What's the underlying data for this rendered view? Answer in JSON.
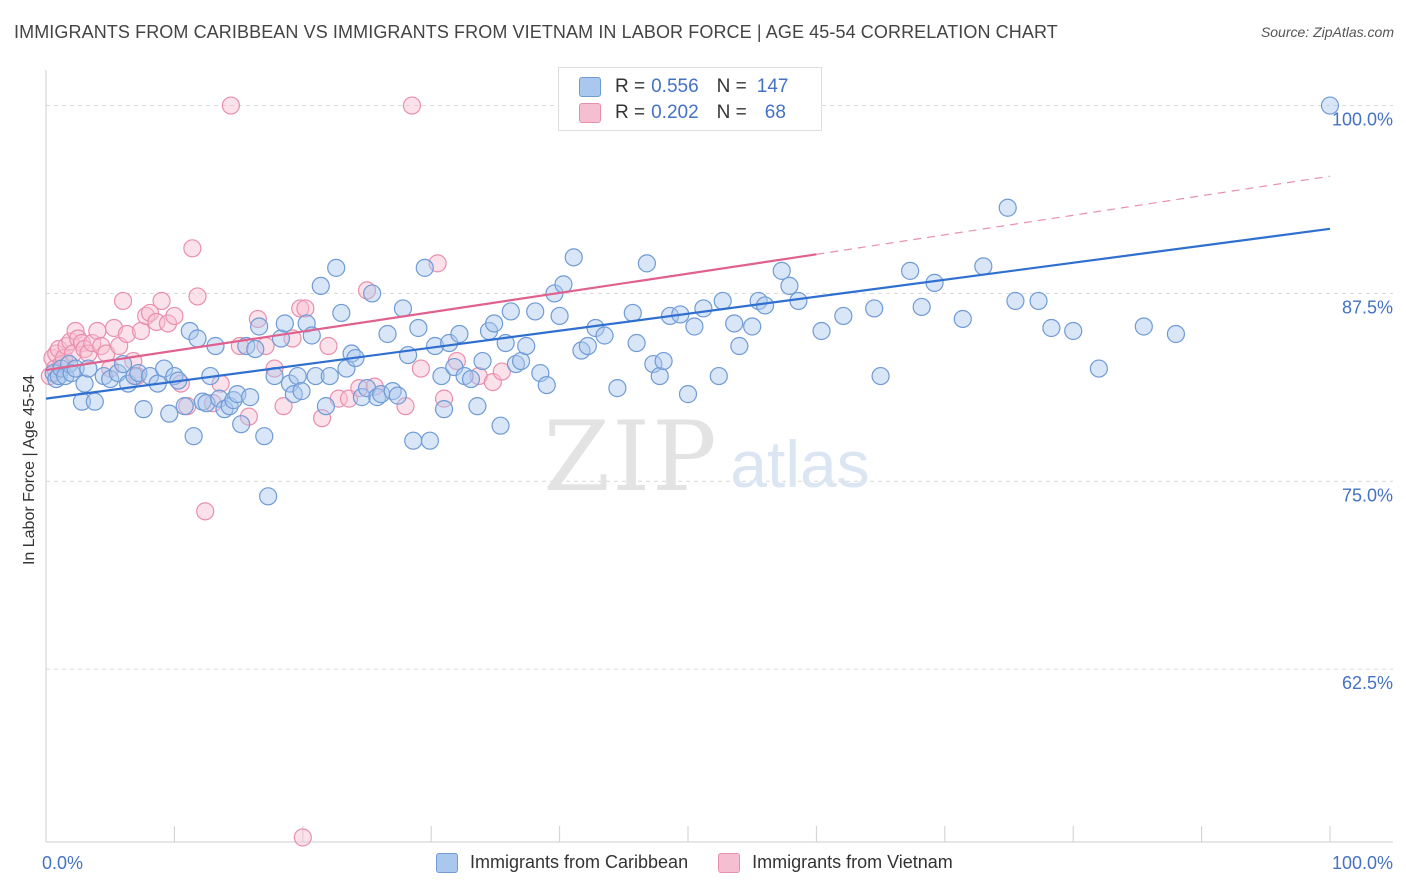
{
  "header": {
    "title": "IMMIGRANTS FROM CARIBBEAN VS IMMIGRANTS FROM VIETNAM IN LABOR FORCE | AGE 45-54 CORRELATION CHART",
    "source": "Source: ZipAtlas.com"
  },
  "watermark": {
    "zip": "ZIP",
    "atlas": "atlas"
  },
  "legend": {
    "r_label": "R =",
    "n_label": "N =",
    "rows": [
      {
        "r": "0.556",
        "n": "147"
      },
      {
        "r": "0.202",
        "n": "68"
      }
    ]
  },
  "colors": {
    "caribbean_fill": "#aac7ee",
    "caribbean_stroke": "#6f9bd6",
    "caribbean_line": "#2f6fd0",
    "vietnam_fill": "#f6bfd1",
    "vietnam_stroke": "#e98fae",
    "vietnam_line": "#e0608e",
    "axis_label": "#4472c4"
  },
  "chart_data": {
    "type": "scatter",
    "title": "IMMIGRANTS FROM CARIBBEAN VS IMMIGRANTS FROM VIETNAM IN LABOR FORCE | AGE 45-54 CORRELATION CHART",
    "xlabel": "",
    "ylabel": "In Labor Force | Age 45-54",
    "xlim": [
      0,
      100
    ],
    "ylim": [
      51.0,
      101.5
    ],
    "x_tick_labels": [
      "0.0%",
      "100.0%"
    ],
    "y_ticks": [
      62.5,
      75.0,
      87.5,
      100.0
    ],
    "y_tick_labels": [
      "62.5%",
      "75.0%",
      "87.5%",
      "100.0%"
    ],
    "grid": "horizontal dashed",
    "legend_position": "top-center",
    "series": [
      {
        "name": "Immigrants from Caribbean",
        "r": 0.556,
        "n": 147,
        "trend": {
          "x": [
            0,
            100
          ],
          "y": [
            80.5,
            91.8
          ]
        },
        "points": [
          [
            0.6,
            82.2
          ],
          [
            0.8,
            81.8
          ],
          [
            1.0,
            82.0
          ],
          [
            1.2,
            82.5
          ],
          [
            1.5,
            82.0
          ],
          [
            1.8,
            82.8
          ],
          [
            2.0,
            82.2
          ],
          [
            2.3,
            82.5
          ],
          [
            2.8,
            80.3
          ],
          [
            3.0,
            81.5
          ],
          [
            3.3,
            82.5
          ],
          [
            3.8,
            80.3
          ],
          [
            4.5,
            82.0
          ],
          [
            5.0,
            81.8
          ],
          [
            5.6,
            82.2
          ],
          [
            6.0,
            82.8
          ],
          [
            6.4,
            81.5
          ],
          [
            6.9,
            82.0
          ],
          [
            7.2,
            82.2
          ],
          [
            7.6,
            79.8
          ],
          [
            8.1,
            82.0
          ],
          [
            8.7,
            81.5
          ],
          [
            9.2,
            82.5
          ],
          [
            9.6,
            79.5
          ],
          [
            10.0,
            82.0
          ],
          [
            10.3,
            81.7
          ],
          [
            10.8,
            80.0
          ],
          [
            11.2,
            85.0
          ],
          [
            11.5,
            78.0
          ],
          [
            11.8,
            84.5
          ],
          [
            12.2,
            80.3
          ],
          [
            12.5,
            80.2
          ],
          [
            12.8,
            82.0
          ],
          [
            13.2,
            84.0
          ],
          [
            13.5,
            80.5
          ],
          [
            13.9,
            79.8
          ],
          [
            14.3,
            80.0
          ],
          [
            14.6,
            80.4
          ],
          [
            14.9,
            80.8
          ],
          [
            15.2,
            78.8
          ],
          [
            15.6,
            84.0
          ],
          [
            15.9,
            80.6
          ],
          [
            16.3,
            83.8
          ],
          [
            16.6,
            85.3
          ],
          [
            17.0,
            78.0
          ],
          [
            17.3,
            74.0
          ],
          [
            17.8,
            82.0
          ],
          [
            18.3,
            84.5
          ],
          [
            18.6,
            85.5
          ],
          [
            19.0,
            81.5
          ],
          [
            19.3,
            80.8
          ],
          [
            19.6,
            82.0
          ],
          [
            19.9,
            81.0
          ],
          [
            20.3,
            85.5
          ],
          [
            20.7,
            84.7
          ],
          [
            21.0,
            82.0
          ],
          [
            21.4,
            88.0
          ],
          [
            21.8,
            80.0
          ],
          [
            22.1,
            82.0
          ],
          [
            22.6,
            89.2
          ],
          [
            23.0,
            86.2
          ],
          [
            23.4,
            82.5
          ],
          [
            23.8,
            83.5
          ],
          [
            24.1,
            83.2
          ],
          [
            24.6,
            80.6
          ],
          [
            25.0,
            81.2
          ],
          [
            25.4,
            87.5
          ],
          [
            25.8,
            80.6
          ],
          [
            26.1,
            80.8
          ],
          [
            26.6,
            84.8
          ],
          [
            27.0,
            81.0
          ],
          [
            27.4,
            80.7
          ],
          [
            27.8,
            86.5
          ],
          [
            28.2,
            83.4
          ],
          [
            28.6,
            77.7
          ],
          [
            29.0,
            85.2
          ],
          [
            29.5,
            89.2
          ],
          [
            29.9,
            77.7
          ],
          [
            30.3,
            84.0
          ],
          [
            30.8,
            82.0
          ],
          [
            31.0,
            79.8
          ],
          [
            31.4,
            84.2
          ],
          [
            31.8,
            82.6
          ],
          [
            32.2,
            84.8
          ],
          [
            32.6,
            82.0
          ],
          [
            33.1,
            81.8
          ],
          [
            33.6,
            80.0
          ],
          [
            34.0,
            83.0
          ],
          [
            34.5,
            85.0
          ],
          [
            34.9,
            85.5
          ],
          [
            35.4,
            78.7
          ],
          [
            35.8,
            84.2
          ],
          [
            36.2,
            86.3
          ],
          [
            36.6,
            82.8
          ],
          [
            37.0,
            83.0
          ],
          [
            37.4,
            84.0
          ],
          [
            38.1,
            86.3
          ],
          [
            38.5,
            82.2
          ],
          [
            39.0,
            81.4
          ],
          [
            39.6,
            87.5
          ],
          [
            40.0,
            86.0
          ],
          [
            40.3,
            88.1
          ],
          [
            41.1,
            89.9
          ],
          [
            41.7,
            83.7
          ],
          [
            42.2,
            84.0
          ],
          [
            42.8,
            85.2
          ],
          [
            43.5,
            84.7
          ],
          [
            44.5,
            81.2
          ],
          [
            45.7,
            86.2
          ],
          [
            46.0,
            84.2
          ],
          [
            46.8,
            89.5
          ],
          [
            47.3,
            82.8
          ],
          [
            47.8,
            82.0
          ],
          [
            48.1,
            83.0
          ],
          [
            48.6,
            86.0
          ],
          [
            49.4,
            86.1
          ],
          [
            50.0,
            80.8
          ],
          [
            50.5,
            85.3
          ],
          [
            51.2,
            86.5
          ],
          [
            52.4,
            82.0
          ],
          [
            52.7,
            87.0
          ],
          [
            53.6,
            85.5
          ],
          [
            54.0,
            84.0
          ],
          [
            55.0,
            85.3
          ],
          [
            55.5,
            87.0
          ],
          [
            56.0,
            86.7
          ],
          [
            57.3,
            89.0
          ],
          [
            57.9,
            88.0
          ],
          [
            58.6,
            87.0
          ],
          [
            60.4,
            85.0
          ],
          [
            62.1,
            86.0
          ],
          [
            64.5,
            86.5
          ],
          [
            65.0,
            82.0
          ],
          [
            67.3,
            89.0
          ],
          [
            68.2,
            86.6
          ],
          [
            69.2,
            88.2
          ],
          [
            71.4,
            85.8
          ],
          [
            73.0,
            89.3
          ],
          [
            74.9,
            93.2
          ],
          [
            75.5,
            87.0
          ],
          [
            77.3,
            87.0
          ],
          [
            78.3,
            85.2
          ],
          [
            80.0,
            85.0
          ],
          [
            82.0,
            82.5
          ],
          [
            85.5,
            85.3
          ],
          [
            88.0,
            84.8
          ],
          [
            100.0,
            100.0
          ]
        ]
      },
      {
        "name": "Immigrants from Vietnam",
        "r": 0.202,
        "n": 68,
        "trend": {
          "x": [
            0,
            60
          ],
          "y": [
            82.4,
            90.1
          ]
        },
        "trend_dashed": {
          "x": [
            60,
            100
          ],
          "y": [
            90.1,
            95.3
          ]
        },
        "points": [
          [
            0.3,
            82.0
          ],
          [
            0.5,
            83.2
          ],
          [
            0.7,
            82.5
          ],
          [
            0.8,
            83.5
          ],
          [
            1.0,
            83.8
          ],
          [
            1.2,
            82.8
          ],
          [
            1.4,
            83.2
          ],
          [
            1.6,
            84.0
          ],
          [
            1.9,
            84.3
          ],
          [
            2.1,
            83.5
          ],
          [
            2.3,
            85.0
          ],
          [
            2.5,
            84.5
          ],
          [
            2.8,
            84.2
          ],
          [
            3.0,
            83.8
          ],
          [
            3.3,
            83.5
          ],
          [
            3.6,
            84.2
          ],
          [
            4.0,
            85.0
          ],
          [
            4.3,
            84.0
          ],
          [
            4.7,
            83.5
          ],
          [
            5.0,
            82.5
          ],
          [
            5.3,
            85.2
          ],
          [
            5.7,
            84.0
          ],
          [
            6.0,
            87.0
          ],
          [
            6.3,
            84.8
          ],
          [
            6.8,
            83.0
          ],
          [
            7.1,
            82.0
          ],
          [
            7.4,
            85.0
          ],
          [
            7.8,
            86.0
          ],
          [
            8.1,
            86.2
          ],
          [
            8.6,
            85.6
          ],
          [
            9.0,
            87.0
          ],
          [
            9.5,
            85.5
          ],
          [
            10.0,
            86.0
          ],
          [
            10.5,
            81.5
          ],
          [
            11.0,
            80.0
          ],
          [
            11.4,
            90.5
          ],
          [
            11.8,
            87.3
          ],
          [
            12.4,
            73.0
          ],
          [
            13.0,
            80.2
          ],
          [
            13.6,
            81.5
          ],
          [
            14.4,
            100.0
          ],
          [
            15.1,
            84.0
          ],
          [
            15.8,
            79.3
          ],
          [
            16.5,
            85.8
          ],
          [
            17.1,
            84.0
          ],
          [
            17.8,
            82.5
          ],
          [
            18.5,
            80.0
          ],
          [
            19.2,
            84.5
          ],
          [
            19.8,
            86.5
          ],
          [
            20.2,
            86.5
          ],
          [
            21.5,
            79.2
          ],
          [
            22.0,
            84.0
          ],
          [
            22.8,
            80.5
          ],
          [
            23.6,
            80.5
          ],
          [
            24.4,
            81.2
          ],
          [
            25.0,
            87.7
          ],
          [
            25.6,
            81.3
          ],
          [
            28.0,
            80.0
          ],
          [
            28.5,
            100.0
          ],
          [
            29.2,
            82.5
          ],
          [
            30.5,
            89.5
          ],
          [
            31.0,
            80.5
          ],
          [
            32.0,
            83.0
          ],
          [
            33.7,
            82.0
          ],
          [
            34.8,
            81.6
          ],
          [
            35.5,
            82.3
          ],
          [
            50.0,
            100.0
          ],
          [
            20.0,
            51.3
          ]
        ]
      }
    ]
  }
}
